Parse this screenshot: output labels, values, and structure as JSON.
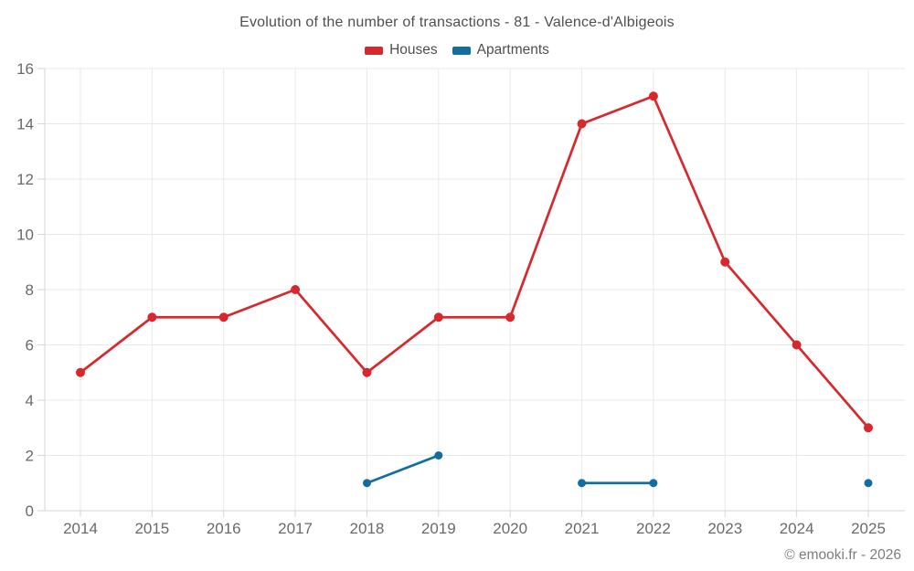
{
  "chart_data": {
    "type": "line",
    "title": "Evolution of the number of transactions - 81 - Valence-d'Albigeois",
    "categories": [
      "2014",
      "2015",
      "2016",
      "2017",
      "2018",
      "2019",
      "2020",
      "2021",
      "2022",
      "2023",
      "2024",
      "2025"
    ],
    "series": [
      {
        "name": "Houses",
        "color": "#d7282d",
        "marker_radius": 5,
        "values": [
          5,
          7,
          7,
          8,
          5,
          7,
          7,
          14,
          15,
          9,
          6,
          3
        ]
      },
      {
        "name": "Apartments",
        "color": "#136e9e",
        "marker_radius": 4.5,
        "values": [
          null,
          null,
          null,
          null,
          1,
          2,
          null,
          1,
          1,
          null,
          null,
          1
        ]
      }
    ],
    "xlabel": "",
    "ylabel": "",
    "ylim": [
      0,
      16
    ],
    "yticks": [
      0,
      2,
      4,
      6,
      8,
      10,
      12,
      14,
      16
    ],
    "grid": true,
    "legend_position": "top",
    "colors": {
      "grid": "#e8e8e8",
      "axis": "#d6d6d6",
      "tick_text": "#6a6a6a",
      "title_text": "#4f4f4f",
      "footer_text": "#7d7d7d"
    }
  },
  "footer": {
    "copyright": "© emooki.fr - 2026"
  }
}
